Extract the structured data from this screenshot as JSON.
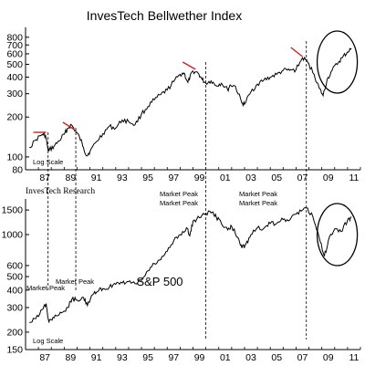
{
  "chart_data": [
    {
      "type": "line",
      "title": "InvesTech Bellwether Index",
      "scale": "log",
      "ylim": [
        80,
        950
      ],
      "yticks": [
        80,
        100,
        200,
        300,
        400,
        500,
        600,
        700,
        800
      ],
      "xlim": [
        1986,
        2012
      ],
      "xticks": [
        "87",
        "89",
        "91",
        "93",
        "95",
        "97",
        "99",
        "01",
        "03",
        "05",
        "07",
        "09",
        "11"
      ],
      "corner_label": "Log Scale",
      "source": "InvesTech Research",
      "series": [
        {
          "x": [
            1986.3,
            1986.8,
            1987.3,
            1987.55,
            1987.75,
            1987.85,
            1988.2,
            1988.6,
            1989.0,
            1989.3,
            1989.55,
            1989.85,
            1990.2,
            1990.5,
            1990.75,
            1991.0,
            1991.5,
            1992.0,
            1992.5,
            1993.0,
            1993.5,
            1994.0,
            1994.5,
            1995.0,
            1995.5,
            1996.0,
            1996.5,
            1997.0,
            1997.5,
            1998.0,
            1998.3,
            1998.6,
            1998.75,
            1999.0,
            1999.4,
            1999.7,
            2000.0,
            2000.4,
            2000.8,
            2001.2,
            2001.7,
            2001.9,
            2002.3,
            2002.8,
            2003.0,
            2003.5,
            2004.0,
            2004.5,
            2005.0,
            2005.5,
            2006.0,
            2006.5,
            2007.0,
            2007.5,
            2007.9,
            2008.4,
            2008.8,
            2009.1,
            2009.4,
            2009.8,
            2010.3,
            2010.6,
            2011.0,
            2011.3
          ],
          "values": [
            118,
            135,
            148,
            145,
            112,
            113,
            120,
            132,
            148,
            165,
            175,
            158,
            140,
            118,
            102,
            110,
            130,
            150,
            170,
            165,
            190,
            185,
            175,
            210,
            240,
            270,
            295,
            320,
            370,
            420,
            430,
            365,
            395,
            445,
            430,
            385,
            360,
            375,
            345,
            360,
            320,
            350,
            340,
            255,
            250,
            310,
            355,
            380,
            400,
            420,
            450,
            450,
            455,
            560,
            520,
            420,
            330,
            290,
            380,
            450,
            520,
            560,
            620,
            660
          ]
        }
      ],
      "annotations": [
        "Market Peak",
        "Market Peak"
      ]
    },
    {
      "type": "line",
      "title": "S&P 500",
      "scale": "log",
      "ylim": [
        150,
        1800
      ],
      "yticks": [
        150,
        200,
        300,
        400,
        500,
        600,
        1000,
        1500
      ],
      "xlim": [
        1986,
        2012
      ],
      "xticks": [
        "87",
        "89",
        "91",
        "93",
        "95",
        "97",
        "99",
        "01",
        "03",
        "05",
        "07",
        "09",
        "11"
      ],
      "corner_label": "Log Scale",
      "series": [
        {
          "x": [
            1986.3,
            1986.8,
            1987.3,
            1987.6,
            1987.8,
            1987.9,
            1988.3,
            1988.8,
            1989.3,
            1989.6,
            1990.0,
            1990.5,
            1990.8,
            1991.2,
            1991.6,
            1992.0,
            1992.5,
            1993.0,
            1993.5,
            1994.0,
            1994.5,
            1995.0,
            1995.5,
            1996.0,
            1996.5,
            1997.0,
            1997.5,
            1998.0,
            1998.5,
            1998.75,
            1999.0,
            1999.5,
            2000.0,
            2000.5,
            2000.8,
            2001.2,
            2001.7,
            2002.0,
            2002.5,
            2002.8,
            2003.1,
            2003.5,
            2004.0,
            2004.5,
            2005.0,
            2005.5,
            2006.0,
            2006.5,
            2007.0,
            2007.5,
            2007.8,
            2008.3,
            2008.8,
            2009.2,
            2009.5,
            2010.0,
            2010.5,
            2011.0,
            2011.3
          ],
          "values": [
            235,
            250,
            290,
            320,
            240,
            245,
            265,
            275,
            300,
            345,
            340,
            355,
            310,
            370,
            390,
            410,
            420,
            440,
            450,
            460,
            445,
            470,
            550,
            620,
            660,
            760,
            900,
            1000,
            1120,
            980,
            1250,
            1320,
            1420,
            1450,
            1350,
            1200,
            1080,
            1150,
            950,
            800,
            850,
            1000,
            1120,
            1110,
            1200,
            1200,
            1280,
            1270,
            1400,
            1500,
            1550,
            1350,
            950,
            700,
            900,
            1100,
            1050,
            1270,
            1330
          ]
        }
      ],
      "annotations": [
        "Market Peak",
        "Market Peak",
        "Market Peak",
        "Market Peak"
      ]
    }
  ]
}
